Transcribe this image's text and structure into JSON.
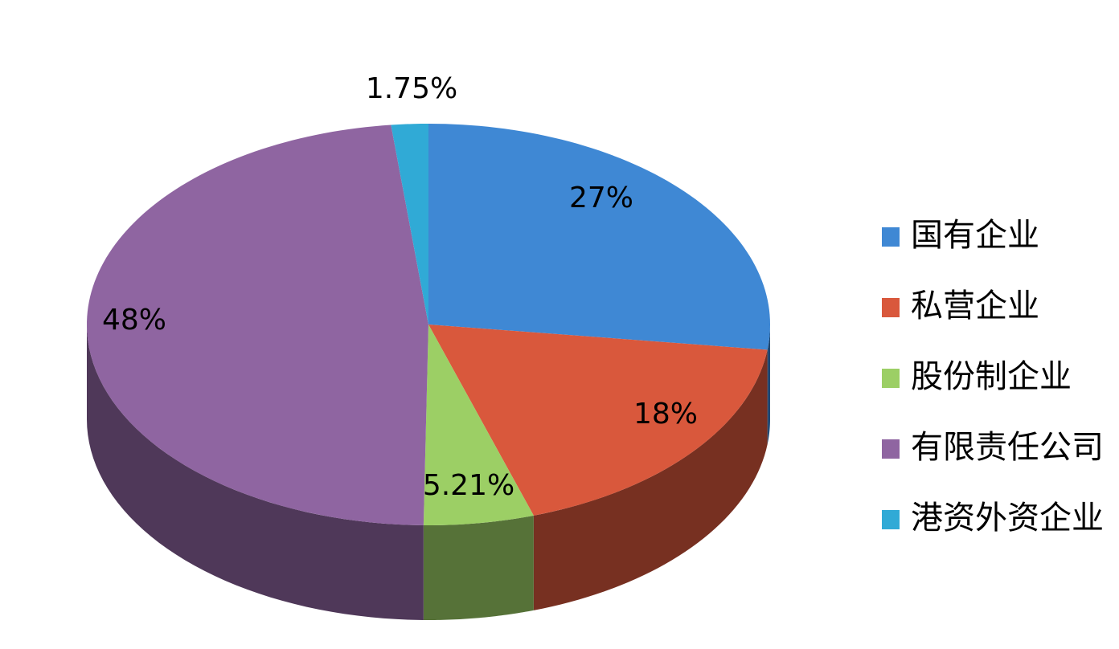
{
  "chart_data": {
    "type": "pie",
    "categories": [
      "国有企业",
      "私营企业",
      "股份制企业",
      "有限责任公司",
      "港资外资企业"
    ],
    "values": [
      27,
      18,
      5.21,
      48,
      1.75
    ],
    "value_labels": [
      "27%",
      "18%",
      "5.21%",
      "48%",
      "1.75%"
    ],
    "colors": [
      "#3f88d4",
      "#d9583c",
      "#9ccf65",
      "#8f65a1",
      "#30aad6"
    ],
    "legend": "right"
  }
}
